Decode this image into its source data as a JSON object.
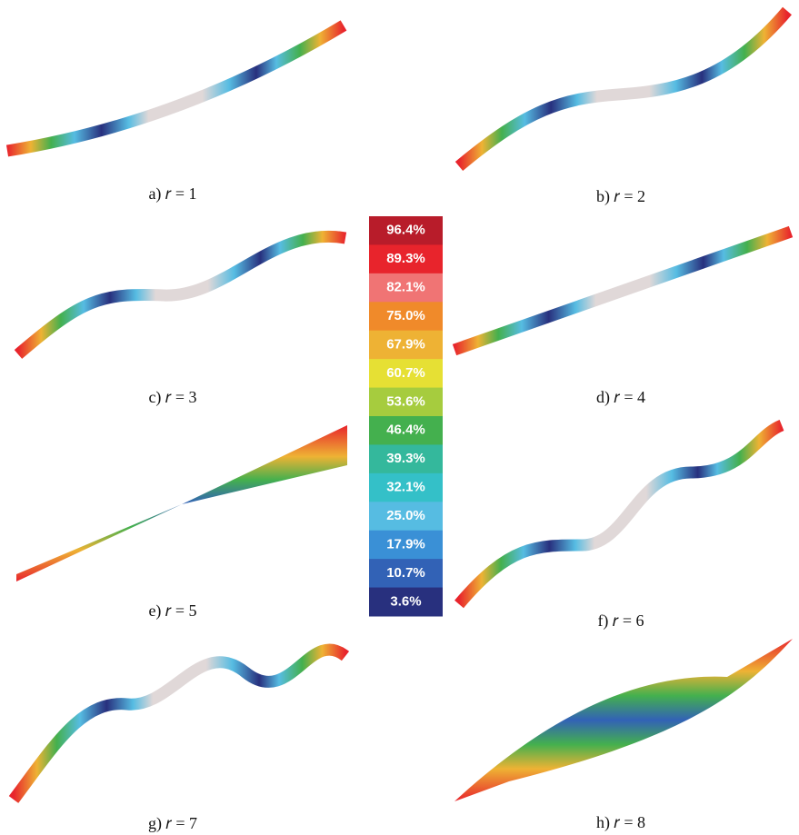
{
  "panels": [
    {
      "caption": "a) 𝑟 = 1"
    },
    {
      "caption": "b) 𝑟 = 2"
    },
    {
      "caption": "c) 𝑟 = 3"
    },
    {
      "caption": "d) 𝑟 = 4"
    },
    {
      "caption": "e) 𝑟 = 5"
    },
    {
      "caption": "f) 𝑟 = 6"
    },
    {
      "caption": "g) 𝑟 = 7"
    },
    {
      "caption": "h) 𝑟 = 8"
    }
  ],
  "legend": {
    "levels": [
      {
        "label": "96.4%",
        "color": "#b81c2a"
      },
      {
        "label": "89.3%",
        "color": "#e8242c"
      },
      {
        "label": "82.1%",
        "color": "#f07474"
      },
      {
        "label": "75.0%",
        "color": "#f08a2a"
      },
      {
        "label": "67.9%",
        "color": "#eeb234"
      },
      {
        "label": "60.7%",
        "color": "#e6e034"
      },
      {
        "label": "53.6%",
        "color": "#a6cc3e"
      },
      {
        "label": "46.4%",
        "color": "#44b04e"
      },
      {
        "label": "39.3%",
        "color": "#34b89c"
      },
      {
        "label": "32.1%",
        "color": "#34c0c8"
      },
      {
        "label": "25.0%",
        "color": "#56bce2"
      },
      {
        "label": "17.9%",
        "color": "#3a90d6"
      },
      {
        "label": "10.7%",
        "color": "#3262b6"
      },
      {
        "label": "3.6%",
        "color": "#28307e"
      }
    ]
  }
}
